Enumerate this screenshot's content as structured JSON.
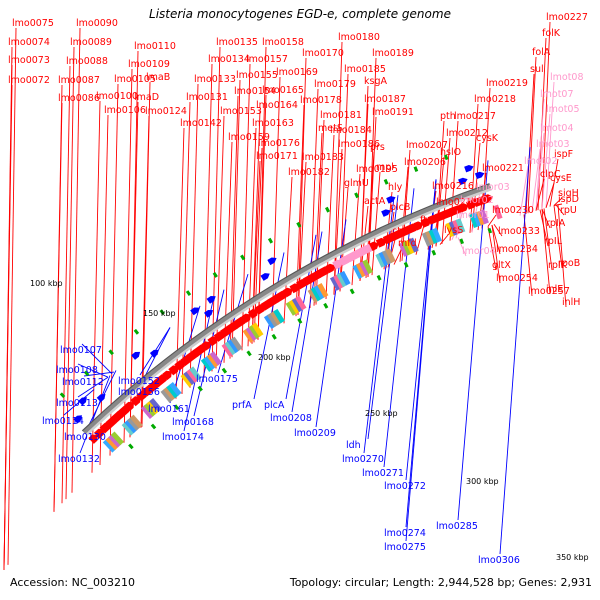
{
  "title": "Listeria monocytogenes EGD-e, complete genome",
  "footer": {
    "accession": "Accession: NC_003210",
    "summary": "Topology: circular; Length: 2,944,528 bp; Genes: 2,931"
  },
  "colors": {
    "forward": "#ff0000",
    "reverse": "#0000ff",
    "rna": "#ff99cc",
    "backbone": "#888888",
    "feature": "#00aa00"
  },
  "ticks": [
    "100 kbp",
    "150 kbp",
    "200 kbp",
    "250 kbp",
    "300 kbp",
    "350 kbp"
  ],
  "top_labels": [
    {
      "text": "lmo0075",
      "color": "red"
    },
    {
      "text": "lmo0074",
      "color": "red"
    },
    {
      "text": "lmo0073",
      "color": "red"
    },
    {
      "text": "lmo0072",
      "color": "red"
    },
    {
      "text": "lmo0090",
      "color": "red"
    },
    {
      "text": "lmo0089",
      "color": "red"
    },
    {
      "text": "lmo0088",
      "color": "red"
    },
    {
      "text": "lmo0087",
      "color": "red"
    },
    {
      "text": "lmo0086",
      "color": "red"
    },
    {
      "text": "lmo0110",
      "color": "red"
    },
    {
      "text": "lmo0109",
      "color": "red"
    },
    {
      "text": "lmo0105",
      "color": "red"
    },
    {
      "text": "lmaB",
      "color": "red"
    },
    {
      "text": "lmo0100",
      "color": "red"
    },
    {
      "text": "lmaD",
      "color": "red"
    },
    {
      "text": "lmo0106",
      "color": "red"
    },
    {
      "text": "lmo0124",
      "color": "red"
    },
    {
      "text": "lmo0135",
      "color": "red"
    },
    {
      "text": "lmo0134",
      "color": "red"
    },
    {
      "text": "lmo0133",
      "color": "red"
    },
    {
      "text": "lmo0131",
      "color": "red"
    },
    {
      "text": "lmo0142",
      "color": "red"
    },
    {
      "text": "lmo0158",
      "color": "red"
    },
    {
      "text": "lmo0157",
      "color": "red"
    },
    {
      "text": "lmo0155",
      "color": "red"
    },
    {
      "text": "lmo0154",
      "color": "red"
    },
    {
      "text": "lmo0153",
      "color": "red"
    },
    {
      "text": "lmo0163",
      "color": "red"
    },
    {
      "text": "lmo0159",
      "color": "red"
    },
    {
      "text": "lmo0164",
      "color": "red"
    },
    {
      "text": "lmo0165",
      "color": "red"
    },
    {
      "text": "lmo0169",
      "color": "red"
    },
    {
      "text": "lmo0170",
      "color": "red"
    },
    {
      "text": "lmo0171",
      "color": "red"
    },
    {
      "text": "lmo0176",
      "color": "red"
    },
    {
      "text": "lmo0182",
      "color": "red"
    },
    {
      "text": "lmo0183",
      "color": "red"
    },
    {
      "text": "lmo0178",
      "color": "red"
    },
    {
      "text": "lmo0179",
      "color": "red"
    },
    {
      "text": "lmo0180",
      "color": "red"
    },
    {
      "text": "lmo0181",
      "color": "red"
    },
    {
      "text": "metS",
      "color": "red"
    },
    {
      "text": "lmo0184",
      "color": "red"
    },
    {
      "text": "lmo0186",
      "color": "red"
    },
    {
      "text": "lmo0185",
      "color": "red"
    },
    {
      "text": "lmo0189",
      "color": "red"
    },
    {
      "text": "ksgA",
      "color": "red"
    },
    {
      "text": "lmo0187",
      "color": "red"
    },
    {
      "text": "lmo0191",
      "color": "red"
    },
    {
      "text": "hly",
      "color": "red"
    },
    {
      "text": "prs",
      "color": "red"
    },
    {
      "text": "mpl",
      "color": "red"
    },
    {
      "text": "lmo0195",
      "color": "red"
    },
    {
      "text": "glmU",
      "color": "red"
    },
    {
      "text": "actA",
      "color": "red"
    },
    {
      "text": "plcB",
      "color": "red"
    },
    {
      "text": "ctc",
      "color": "red"
    },
    {
      "text": "mfd",
      "color": "red"
    },
    {
      "text": "lmo0206",
      "color": "red"
    },
    {
      "text": "lmo0207",
      "color": "red"
    },
    {
      "text": "pth",
      "color": "red"
    },
    {
      "text": "lmo0212",
      "color": "red"
    },
    {
      "text": "hslO",
      "color": "red"
    },
    {
      "text": "lmo0216",
      "color": "red"
    },
    {
      "text": "lmo0215",
      "color": "red"
    },
    {
      "text": "ftsH",
      "color": "red"
    },
    {
      "text": "lysS",
      "color": "red"
    },
    {
      "text": "lmo0217",
      "color": "red"
    },
    {
      "text": "cysK",
      "color": "red"
    },
    {
      "text": "lmo0218",
      "color": "red"
    },
    {
      "text": "lmo0219",
      "color": "red"
    },
    {
      "text": "sul",
      "color": "red"
    },
    {
      "text": "folA",
      "color": "red"
    },
    {
      "text": "folK",
      "color": "red"
    },
    {
      "text": "lmo0227",
      "color": "red"
    },
    {
      "text": "lmo0221",
      "color": "red"
    },
    {
      "text": "lmot08",
      "color": "pink"
    },
    {
      "text": "lmot07",
      "color": "pink"
    },
    {
      "text": "lmot05",
      "color": "pink"
    },
    {
      "text": "lmot04",
      "color": "pink"
    },
    {
      "text": "lmot03",
      "color": "pink"
    },
    {
      "text": "lmot02",
      "color": "pink"
    },
    {
      "text": "lmor03",
      "color": "pink"
    },
    {
      "text": "lmor02",
      "color": "pink"
    },
    {
      "text": "lmor01",
      "color": "pink"
    },
    {
      "text": "lmor04",
      "color": "pink"
    },
    {
      "text": "ispF",
      "color": "red"
    },
    {
      "text": "clpC",
      "color": "red"
    },
    {
      "text": "cysE",
      "color": "red"
    },
    {
      "text": "ispD",
      "color": "red"
    },
    {
      "text": "sigH",
      "color": "red"
    },
    {
      "text": "lmo0230",
      "color": "red"
    },
    {
      "text": "rpIA",
      "color": "red"
    },
    {
      "text": "rpU",
      "color": "red"
    },
    {
      "text": "lmo0233",
      "color": "red"
    },
    {
      "text": "rpIL",
      "color": "red"
    },
    {
      "text": "lmo0234",
      "color": "red"
    },
    {
      "text": "gltX",
      "color": "red"
    },
    {
      "text": "rpIK",
      "color": "red"
    },
    {
      "text": "rpoB",
      "color": "red"
    },
    {
      "text": "lmo0254",
      "color": "red"
    },
    {
      "text": "lmo0257",
      "color": "red"
    },
    {
      "text": "inlE",
      "color": "red"
    },
    {
      "text": "inlH",
      "color": "red"
    }
  ],
  "bottom_labels": [
    "lmo0107",
    "lmo0108",
    "lmo0112",
    "lmo0113",
    "lmo0114",
    "lmo0130",
    "lmo0132",
    "lmo0152",
    "lmo0156",
    "lmo0161",
    "lmo0168",
    "lmo0174",
    "lmo0175",
    "prfA",
    "plcA",
    "lmo0208",
    "lmo0209",
    "ldh",
    "lmo0270",
    "lmo0271",
    "lmo0272",
    "lmo0274",
    "lmo0275",
    "lmo0285",
    "lmo0306"
  ]
}
